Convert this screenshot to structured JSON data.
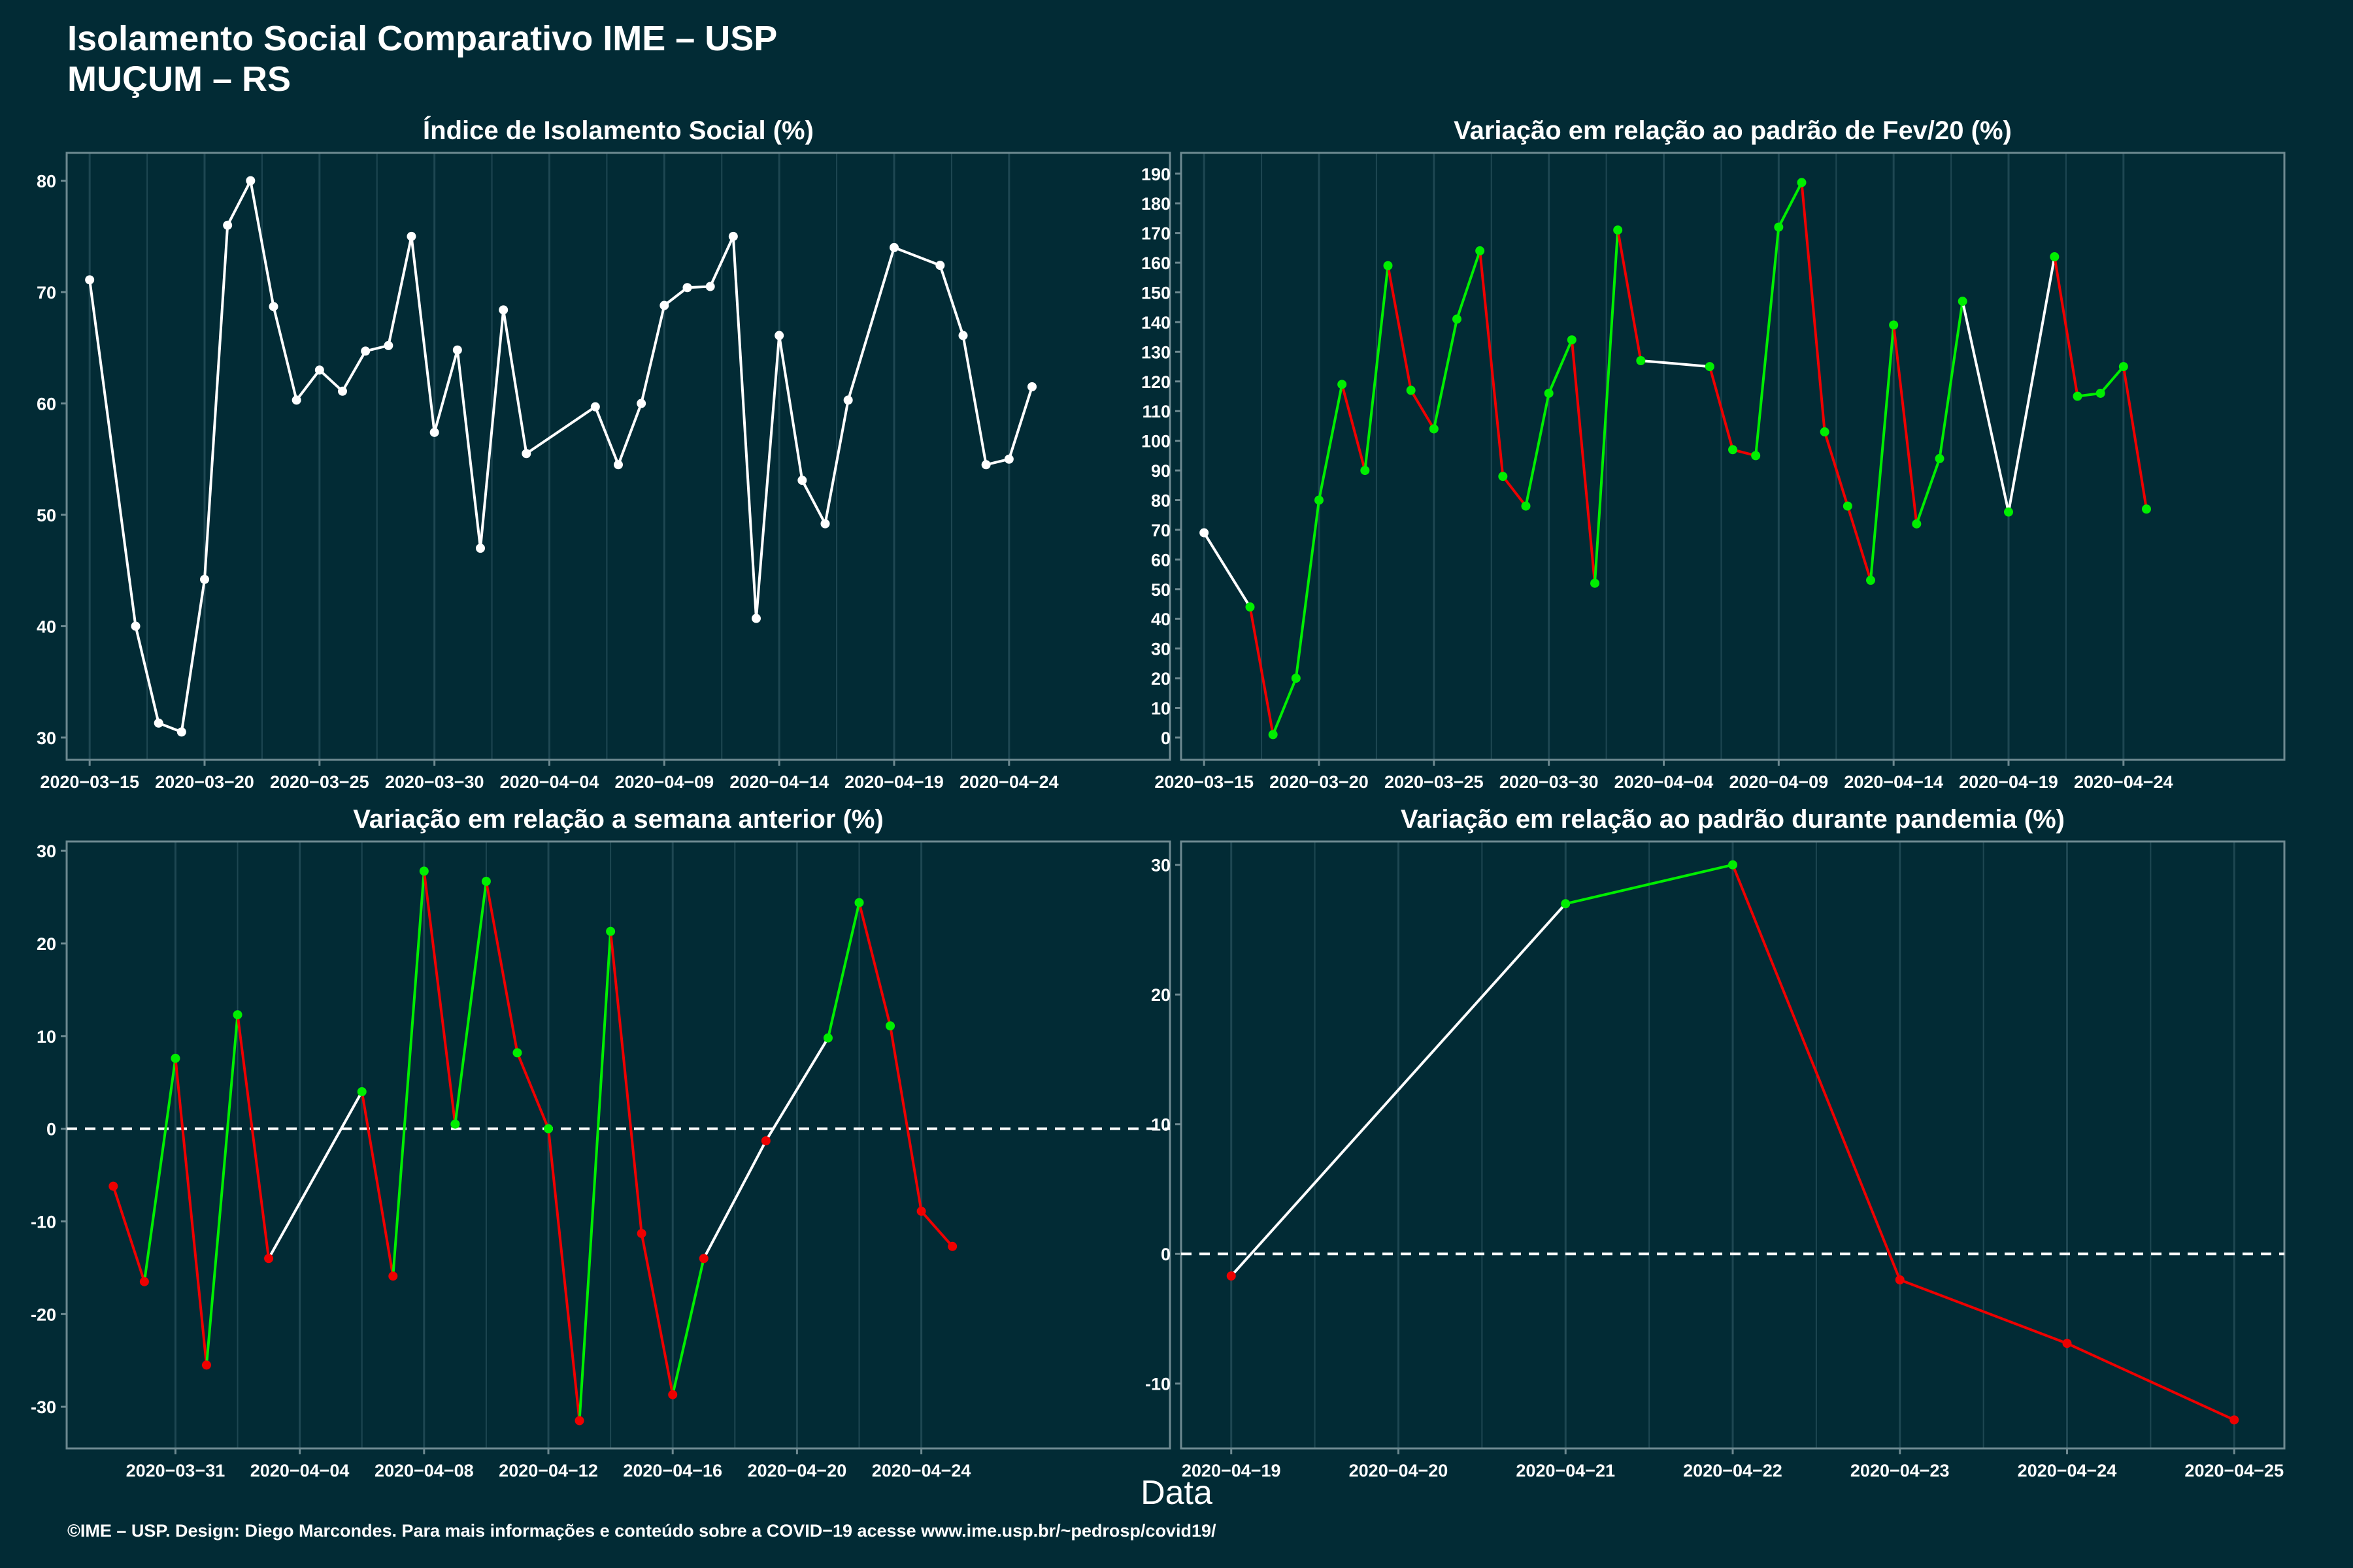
{
  "title_line1": "Isolamento Social Comparativo IME – USP",
  "title_line2": "MUÇUM – RS",
  "xlabel": "Data",
  "footer": "©IME – USP. Design: Diego Marcondes. Para mais informações e conteúdo sobre a COVID−19 acesse www.ime.usp.br/~pedrosp/covid19/",
  "colors": {
    "background": "#022B35",
    "positive": "#00EE00",
    "negative": "#EE0000",
    "neutral": "#FFFFFF",
    "grid": "#1E4752"
  },
  "chart_data": [
    {
      "type": "line",
      "title": "Índice de Isolamento Social (%)",
      "x_ticks": [
        "2020-03-15",
        "2020-03-20",
        "2020-03-25",
        "2020-03-30",
        "2020-04-04",
        "2020-04-09",
        "2020-04-14",
        "2020-04-19",
        "2020-04-24"
      ],
      "y_ticks": [
        30,
        40,
        50,
        60,
        70,
        80
      ],
      "xlim": [
        "2020-03-14",
        "2020-05-01"
      ],
      "ylim": [
        28,
        82.5
      ],
      "grid": true,
      "points": [
        [
          "2020-03-15",
          71.1
        ],
        [
          "2020-03-17",
          40.0
        ],
        [
          "2020-03-18",
          31.3
        ],
        [
          "2020-03-19",
          30.5
        ],
        [
          "2020-03-20",
          44.2
        ],
        [
          "2020-03-21",
          76.0
        ],
        [
          "2020-03-22",
          80.0
        ],
        [
          "2020-03-23",
          68.7
        ],
        [
          "2020-03-24",
          60.3
        ],
        [
          "2020-03-25",
          63.0
        ],
        [
          "2020-03-26",
          61.1
        ],
        [
          "2020-03-27",
          64.7
        ],
        [
          "2020-03-28",
          65.2
        ],
        [
          "2020-03-29",
          75.0
        ],
        [
          "2020-03-30",
          57.4
        ],
        [
          "2020-03-31",
          64.8
        ],
        [
          "2020-04-01",
          47.0
        ],
        [
          "2020-04-02",
          68.4
        ],
        [
          "2020-04-03",
          55.5
        ],
        [
          "2020-04-06",
          59.7
        ],
        [
          "2020-04-07",
          54.5
        ],
        [
          "2020-04-08",
          60.0
        ],
        [
          "2020-04-09",
          68.8
        ],
        [
          "2020-04-10",
          70.4
        ],
        [
          "2020-04-11",
          70.5
        ],
        [
          "2020-04-12",
          75.0
        ],
        [
          "2020-04-13",
          40.7
        ],
        [
          "2020-04-14",
          66.1
        ],
        [
          "2020-04-15",
          53.1
        ],
        [
          "2020-04-16",
          49.2
        ],
        [
          "2020-04-17",
          60.3
        ],
        [
          "2020-04-19",
          74.0
        ],
        [
          "2020-04-21",
          72.4
        ],
        [
          "2020-04-22",
          66.1
        ],
        [
          "2020-04-23",
          54.5
        ],
        [
          "2020-04-24",
          55.0
        ],
        [
          "2020-04-25",
          61.5
        ]
      ]
    },
    {
      "type": "line",
      "title": "Variação em relação ao padrão de Fev/20 (%)",
      "x_ticks": [
        "2020-03-15",
        "2020-03-20",
        "2020-03-25",
        "2020-03-30",
        "2020-04-04",
        "2020-04-09",
        "2020-04-14",
        "2020-04-19",
        "2020-04-24"
      ],
      "y_ticks": [
        0,
        10,
        20,
        30,
        40,
        50,
        60,
        70,
        80,
        90,
        100,
        110,
        120,
        130,
        140,
        150,
        160,
        170,
        180,
        190
      ],
      "xlim": [
        "2020-03-14",
        "2020-05-01"
      ],
      "ylim": [
        -7.5,
        197
      ],
      "grid": true,
      "color_rule": "green segment when value rises vs. previous non-gap day; white across data gaps",
      "points": [
        [
          "2020-03-15",
          69
        ],
        [
          "2020-03-17",
          44
        ],
        [
          "2020-03-18",
          1
        ],
        [
          "2020-03-19",
          20
        ],
        [
          "2020-03-20",
          80
        ],
        [
          "2020-03-21",
          119
        ],
        [
          "2020-03-22",
          90
        ],
        [
          "2020-03-23",
          159
        ],
        [
          "2020-03-24",
          117
        ],
        [
          "2020-03-25",
          104
        ],
        [
          "2020-03-26",
          141
        ],
        [
          "2020-03-27",
          164
        ],
        [
          "2020-03-28",
          88
        ],
        [
          "2020-03-29",
          78
        ],
        [
          "2020-03-30",
          116
        ],
        [
          "2020-03-31",
          134
        ],
        [
          "2020-04-01",
          52
        ],
        [
          "2020-04-02",
          171
        ],
        [
          "2020-04-03",
          127
        ],
        [
          "2020-04-06",
          125
        ],
        [
          "2020-04-07",
          97
        ],
        [
          "2020-04-08",
          95
        ],
        [
          "2020-04-09",
          172
        ],
        [
          "2020-04-10",
          187
        ],
        [
          "2020-04-11",
          103
        ],
        [
          "2020-04-12",
          78
        ],
        [
          "2020-04-13",
          53
        ],
        [
          "2020-04-14",
          139
        ],
        [
          "2020-04-15",
          72
        ],
        [
          "2020-04-16",
          94
        ],
        [
          "2020-04-17",
          147
        ],
        [
          "2020-04-19",
          76
        ],
        [
          "2020-04-21",
          162
        ],
        [
          "2020-04-22",
          115
        ],
        [
          "2020-04-23",
          116
        ],
        [
          "2020-04-24",
          125
        ],
        [
          "2020-04-25",
          77
        ]
      ]
    },
    {
      "type": "line",
      "title": "Variação em relação a semana anterior (%)",
      "x_ticks": [
        "2020-03-31",
        "2020-04-04",
        "2020-04-08",
        "2020-04-12",
        "2020-04-16",
        "2020-04-20",
        "2020-04-24"
      ],
      "y_ticks": [
        -30,
        -20,
        -10,
        0,
        10,
        20,
        30
      ],
      "xlim": [
        "2020-03-27.5",
        "2020-05-02"
      ],
      "ylim": [
        -34.5,
        31
      ],
      "grid": true,
      "reference_line": 0,
      "points": [
        [
          "2020-03-29",
          -6.2
        ],
        [
          "2020-03-30",
          -16.5
        ],
        [
          "2020-03-31",
          7.6
        ],
        [
          "2020-04-01",
          -25.5
        ],
        [
          "2020-04-02",
          12.3
        ],
        [
          "2020-04-03",
          -14.0
        ],
        [
          "2020-04-06",
          4.0
        ],
        [
          "2020-04-07",
          -15.9
        ],
        [
          "2020-04-08",
          27.8
        ],
        [
          "2020-04-09",
          0.5
        ],
        [
          "2020-04-10",
          26.7
        ],
        [
          "2020-04-11",
          8.2
        ],
        [
          "2020-04-12",
          0.0
        ],
        [
          "2020-04-13",
          -31.5
        ],
        [
          "2020-04-14",
          21.3
        ],
        [
          "2020-04-15",
          -11.3
        ],
        [
          "2020-04-16",
          -28.7
        ],
        [
          "2020-04-17",
          -14.0
        ],
        [
          "2020-04-19",
          -1.3
        ],
        [
          "2020-04-21",
          9.8
        ],
        [
          "2020-04-22",
          24.4
        ],
        [
          "2020-04-23",
          11.1
        ],
        [
          "2020-04-24",
          -8.9
        ],
        [
          "2020-04-25",
          -12.7
        ]
      ]
    },
    {
      "type": "line",
      "title": "Variação em relação ao padrão durante pandemia (%)",
      "x_ticks": [
        "2020-04-19",
        "2020-04-20",
        "2020-04-21",
        "2020-04-22",
        "2020-04-23",
        "2020-04-24",
        "2020-04-25"
      ],
      "y_ticks": [
        -10,
        0,
        10,
        20,
        30
      ],
      "xlim": [
        "2020-04-18.7",
        "2020-04-25.3"
      ],
      "ylim": [
        -15,
        31.8
      ],
      "grid": true,
      "reference_line": 0,
      "points": [
        [
          "2020-04-19",
          -1.7
        ],
        [
          "2020-04-21",
          27.0
        ],
        [
          "2020-04-22",
          30.0
        ],
        [
          "2020-04-23",
          -2.0
        ],
        [
          "2020-04-24",
          -6.9
        ],
        [
          "2020-04-25",
          -12.8
        ]
      ]
    }
  ]
}
